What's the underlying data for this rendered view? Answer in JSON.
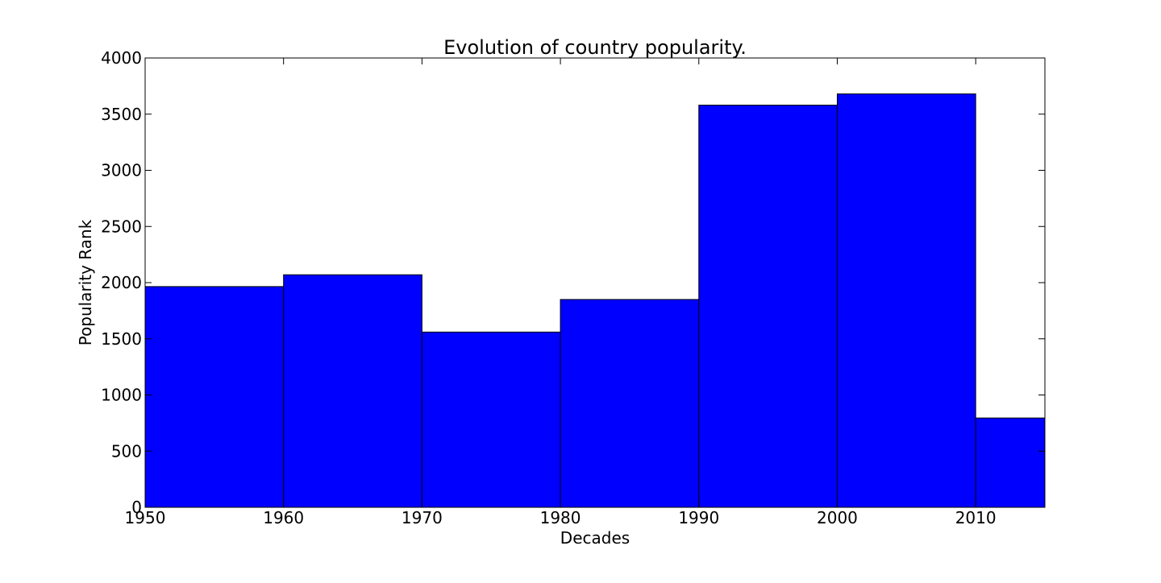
{
  "chart_data": {
    "type": "bar",
    "title": "Evolution of country popularity.",
    "xlabel": "Decades",
    "ylabel": "Popularity Rank",
    "xlim": [
      1950,
      2015
    ],
    "ylim": [
      0,
      4000
    ],
    "grid": false,
    "legend": "none",
    "bar_color": "#0000ff",
    "edge_color": "#000000",
    "bins": [
      {
        "start": 1950,
        "end": 1960,
        "value": 1965
      },
      {
        "start": 1960,
        "end": 1970,
        "value": 2070
      },
      {
        "start": 1970,
        "end": 1980,
        "value": 1560
      },
      {
        "start": 1980,
        "end": 1990,
        "value": 1850
      },
      {
        "start": 1990,
        "end": 2000,
        "value": 3580
      },
      {
        "start": 2000,
        "end": 2010,
        "value": 3680
      },
      {
        "start": 2010,
        "end": 2015,
        "value": 795
      }
    ],
    "x_ticks": [
      1950,
      1960,
      1970,
      1980,
      1990,
      2000,
      2010
    ],
    "y_ticks": [
      0,
      500,
      1000,
      1500,
      2000,
      2500,
      3000,
      3500,
      4000
    ]
  }
}
